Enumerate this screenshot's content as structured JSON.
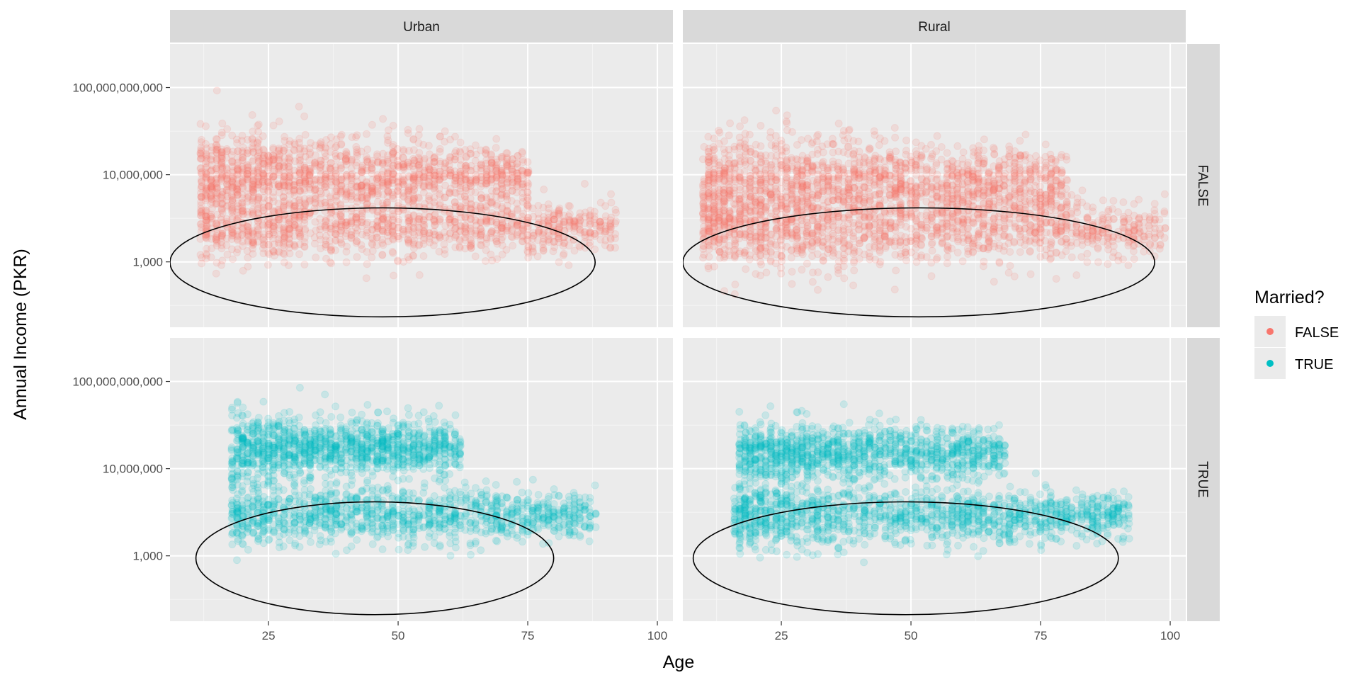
{
  "chart_data": {
    "type": "scatter",
    "facet_columns": [
      "Urban",
      "Rural"
    ],
    "facet_rows": [
      "FALSE",
      "TRUE"
    ],
    "xlabel": "Age",
    "ylabel": "Annual Income (PKR)",
    "xlim": [
      6,
      103
    ],
    "x_ticks": [
      25,
      50,
      75,
      100
    ],
    "x_tick_labels": [
      "25",
      "50",
      "75",
      "100"
    ],
    "y_scale": "log10",
    "ylim": [
      1,
      10000000000000
    ],
    "y_ticks": [
      1000,
      10000000,
      100000000000
    ],
    "y_tick_labels": [
      "1,000",
      "10,000,000",
      "100,000,000,000"
    ],
    "grid": true,
    "legend": {
      "title": "Married?",
      "placement": "right",
      "entries": [
        {
          "label": "FALSE",
          "color": "#F8766D"
        },
        {
          "label": "TRUE",
          "color": "#00BFC4"
        }
      ]
    },
    "point_alpha": 0.15,
    "clusters": [
      {
        "panel": "Urban|FALSE",
        "x_range": [
          12,
          75
        ],
        "y_center": 10000000,
        "y_spread": 1.0,
        "n": 1400
      },
      {
        "panel": "Urban|FALSE",
        "x_range": [
          12,
          92
        ],
        "y_center": 40000,
        "y_spread": 0.9,
        "n": 1200
      },
      {
        "panel": "Rural|FALSE",
        "x_range": [
          10,
          80
        ],
        "y_center": 3000000,
        "y_spread": 1.3,
        "n": 1700
      },
      {
        "panel": "Rural|FALSE",
        "x_range": [
          10,
          99
        ],
        "y_center": 30000,
        "y_spread": 1.0,
        "n": 1200
      },
      {
        "panel": "Urban|TRUE",
        "x_range": [
          18,
          62
        ],
        "y_center": 100000000,
        "y_spread": 0.8,
        "n": 1200
      },
      {
        "panel": "Urban|TRUE",
        "x_range": [
          18,
          88
        ],
        "y_center": 80000,
        "y_spread": 0.8,
        "n": 1200
      },
      {
        "panel": "Rural|TRUE",
        "x_range": [
          17,
          68
        ],
        "y_center": 50000000,
        "y_spread": 0.8,
        "n": 1200
      },
      {
        "panel": "Rural|TRUE",
        "x_range": [
          16,
          92
        ],
        "y_center": 60000,
        "y_spread": 0.8,
        "n": 1400
      }
    ],
    "annotations": [
      {
        "panel": "Urban|FALSE",
        "shape": "ellipse",
        "x_range": [
          6,
          88
        ],
        "y_range": [
          3,
          300000
        ]
      },
      {
        "panel": "Rural|FALSE",
        "shape": "ellipse",
        "x_range": [
          6,
          97
        ],
        "y_range": [
          3,
          300000
        ]
      },
      {
        "panel": "Urban|TRUE",
        "shape": "ellipse",
        "x_range": [
          11,
          80
        ],
        "y_range": [
          2,
          300000
        ]
      },
      {
        "panel": "Rural|TRUE",
        "shape": "ellipse",
        "x_range": [
          8,
          90
        ],
        "y_range": [
          2,
          300000
        ]
      }
    ]
  }
}
